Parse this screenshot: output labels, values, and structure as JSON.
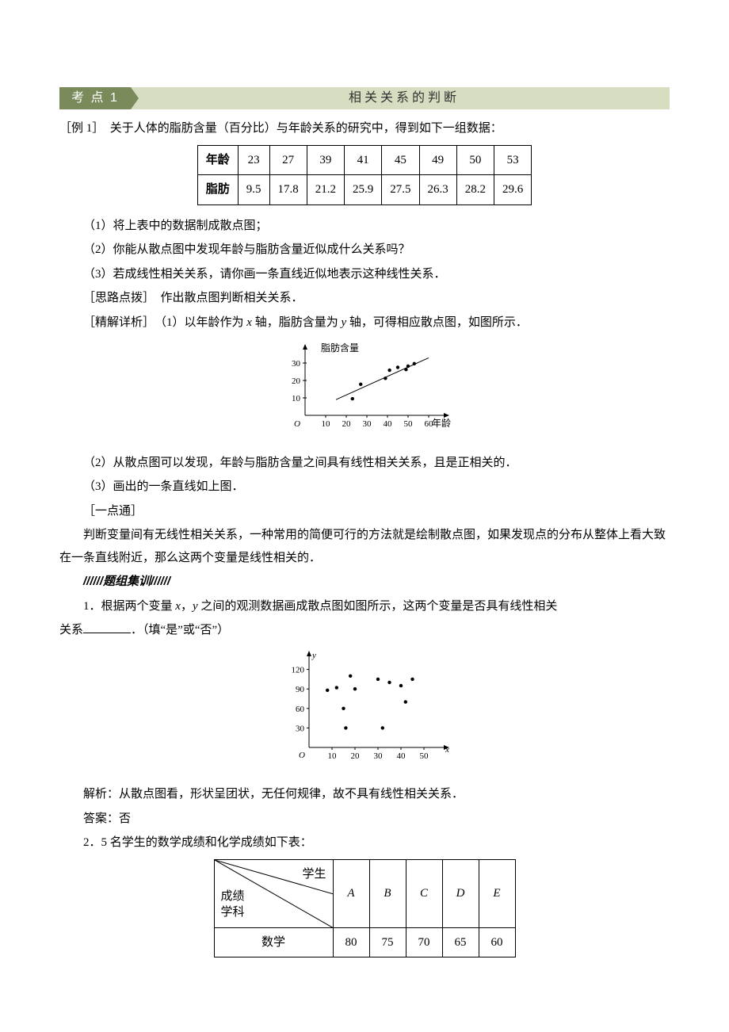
{
  "section": {
    "tag": "考 点 1",
    "title": "相关关系的判断"
  },
  "example1": {
    "lead": "［例 1］　关于人体的脂肪含量（百分比）与年龄关系的研究中，得到如下一组数据：",
    "table": {
      "row1_label": "年龄",
      "row2_label": "脂肪",
      "ages": [
        "23",
        "27",
        "39",
        "41",
        "45",
        "49",
        "50",
        "53"
      ],
      "fats": [
        "9.5",
        "17.8",
        "21.2",
        "25.9",
        "27.5",
        "26.3",
        "28.2",
        "29.6"
      ]
    },
    "q1": "（1）将上表中的数据制成散点图；",
    "q2": "（2）你能从散点图中发现年龄与脂肪含量近似成什么关系吗？",
    "q3": "（3）若成线性相关关系，请你画一条直线近似地表示这种线性关系．",
    "hint": "［思路点拨］　作出散点图判断相关关系．",
    "sol_lead": "［精解详析］　（1）以年龄作为 x 轴，脂肪含量为 y 轴，可得相应散点图，如图所示．",
    "chart1": {
      "y_label": "脂肪含量",
      "x_label": "年龄",
      "y_ticks": [
        10,
        20,
        30
      ],
      "x_ticks": [
        10,
        20,
        30,
        40,
        50,
        60
      ],
      "points": [
        [
          23,
          9.5
        ],
        [
          27,
          17.8
        ],
        [
          39,
          21.2
        ],
        [
          41,
          25.9
        ],
        [
          45,
          27.5
        ],
        [
          49,
          26.3
        ],
        [
          50,
          28.2
        ],
        [
          53,
          29.6
        ]
      ],
      "line": {
        "x1": 15,
        "y1": 9,
        "x2": 60,
        "y2": 33
      },
      "axis_color": "#000000",
      "point_color": "#000000",
      "tick_fontsize": 11,
      "label_fontsize": 12
    },
    "sol2": "（2）从散点图可以发现，年龄与脂肪含量之间具有线性相关关系，且是正相关的．",
    "sol3": "（3）画出的一条直线如上图．",
    "tip_head": "［一点通］",
    "tip1": "判断变量间有无线性相关关系，一种常用的简便可行的方法就是绘制散点图，如果发现点的分布从整体上看大致在一条直线附近，那么这两个变量是线性相关的．"
  },
  "drill_head": "//////题组集训//////",
  "p1": {
    "text_a": "1．根据两个变量 ",
    "text_b": "，",
    "text_c": " 之间的观测数据画成散点图如图所示，这两个变量是否具有线性相关",
    "text_d": "关系",
    "text_e": "．（填“是”或“否”）",
    "chart2": {
      "y_ticks": [
        30,
        60,
        90,
        120
      ],
      "x_ticks": [
        10,
        20,
        30,
        40,
        50
      ],
      "points": [
        [
          8,
          88
        ],
        [
          12,
          92
        ],
        [
          15,
          60
        ],
        [
          16,
          30
        ],
        [
          18,
          110
        ],
        [
          20,
          90
        ],
        [
          30,
          105
        ],
        [
          32,
          30
        ],
        [
          35,
          100
        ],
        [
          40,
          95
        ],
        [
          42,
          70
        ],
        [
          45,
          105
        ]
      ],
      "axis_color": "#000000",
      "point_color": "#000000",
      "tick_fontsize": 11
    },
    "expl": "解析：从散点图看，形状呈团状，无任何规律，故不具有线性相关关系．",
    "ans": "答案：否"
  },
  "p2": {
    "lead": "2．5 名学生的数学成绩和化学成绩如下表：",
    "header_top": "学生",
    "header_mid": "成绩",
    "header_bot": "学科",
    "students": [
      "A",
      "B",
      "C",
      "D",
      "E"
    ],
    "row_math_label": "数学",
    "row_math": [
      "80",
      "75",
      "70",
      "65",
      "60"
    ]
  }
}
